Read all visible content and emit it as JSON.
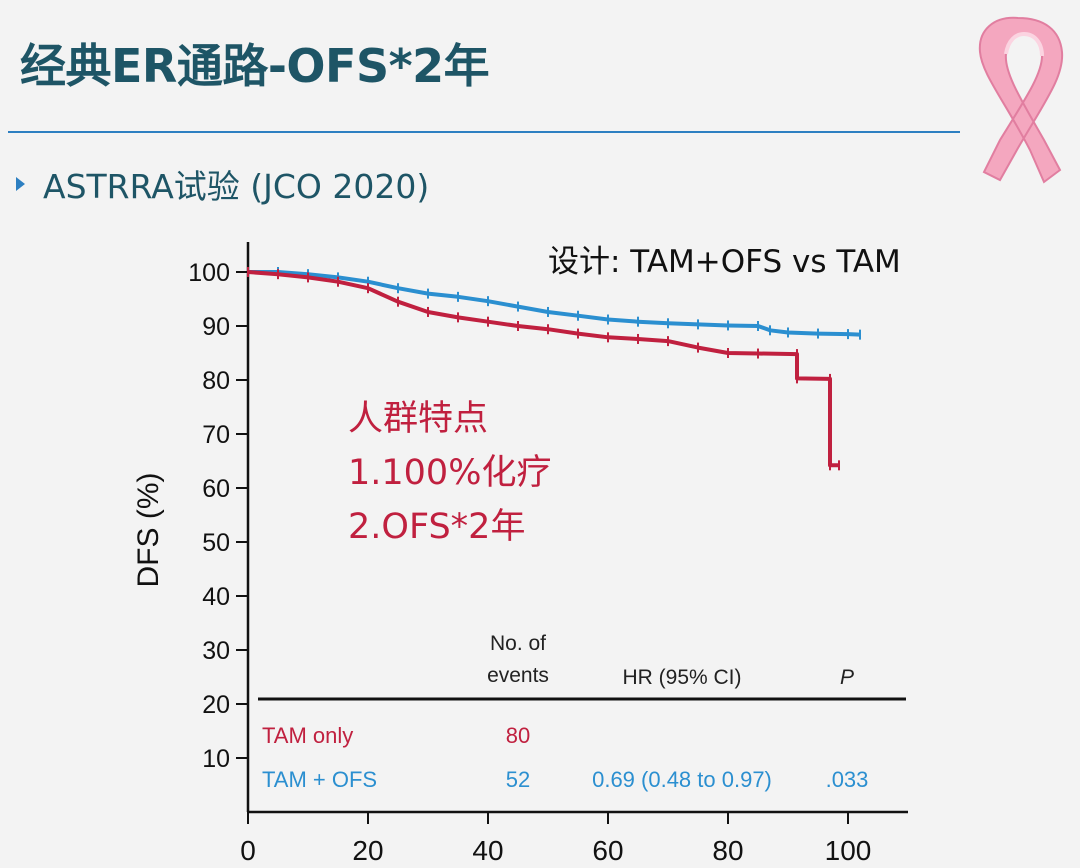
{
  "slide": {
    "title": "经典ER通路-OFS*2年",
    "bullet": "ASTRRA试验 (JCO 2020)"
  },
  "colors": {
    "tam_only": "#c0203f",
    "tam_ofs": "#2b8fd0",
    "title": "#1e5566",
    "rule": "#2d7fc1"
  },
  "icons": {
    "ribbon": "pink-ribbon-icon"
  },
  "chart_data": {
    "type": "line",
    "ylabel": "DFS (%)",
    "xlabel": "",
    "xlim": [
      0,
      110
    ],
    "ylim": [
      0,
      100
    ],
    "x_ticks": [
      0,
      20,
      40,
      60,
      80,
      100
    ],
    "y_ticks": [
      10,
      20,
      30,
      40,
      50,
      60,
      70,
      80,
      90,
      100
    ],
    "design_text": "设计: TAM+OFS  vs TAM",
    "annotation_lines": [
      "人群特点",
      "1.100%化疗",
      "2.OFS*2年"
    ],
    "series": [
      {
        "name": "TAM + OFS",
        "points": [
          [
            0,
            100
          ],
          [
            5,
            100
          ],
          [
            10,
            99.6
          ],
          [
            15,
            99
          ],
          [
            20,
            98.2
          ],
          [
            25,
            97
          ],
          [
            30,
            96
          ],
          [
            35,
            95.4
          ],
          [
            40,
            94.6
          ],
          [
            45,
            93.6
          ],
          [
            50,
            92.6
          ],
          [
            55,
            91.9
          ],
          [
            60,
            91.2
          ],
          [
            65,
            90.8
          ],
          [
            70,
            90.5
          ],
          [
            75,
            90.3
          ],
          [
            80,
            90.1
          ],
          [
            85,
            90
          ],
          [
            87,
            89.2
          ],
          [
            90,
            88.8
          ],
          [
            95,
            88.6
          ],
          [
            100,
            88.5
          ],
          [
            102,
            88.4
          ]
        ]
      },
      {
        "name": "TAM only",
        "points": [
          [
            0,
            100
          ],
          [
            5,
            99.6
          ],
          [
            10,
            99
          ],
          [
            15,
            98.2
          ],
          [
            20,
            97
          ],
          [
            25,
            94.5
          ],
          [
            30,
            92.6
          ],
          [
            35,
            91.6
          ],
          [
            40,
            90.8
          ],
          [
            45,
            90
          ],
          [
            50,
            89.4
          ],
          [
            55,
            88.6
          ],
          [
            60,
            87.9
          ],
          [
            65,
            87.6
          ],
          [
            70,
            87.2
          ],
          [
            75,
            86
          ],
          [
            80,
            85
          ],
          [
            85,
            84.9
          ],
          [
            91.5,
            84.8
          ],
          [
            91.5,
            80.3
          ],
          [
            97,
            80.2
          ],
          [
            97,
            64.2
          ],
          [
            98.5,
            64.2
          ]
        ]
      }
    ],
    "table": {
      "header_events": [
        "No. of",
        "events"
      ],
      "header_hr": "HR (95% CI)",
      "header_p": "P",
      "rows": [
        {
          "label": "TAM only",
          "events": "80",
          "hr": "",
          "p": ""
        },
        {
          "label": "TAM + OFS",
          "events": "52",
          "hr": "0.69 (0.48 to 0.97)",
          "p": ".033"
        }
      ]
    }
  }
}
